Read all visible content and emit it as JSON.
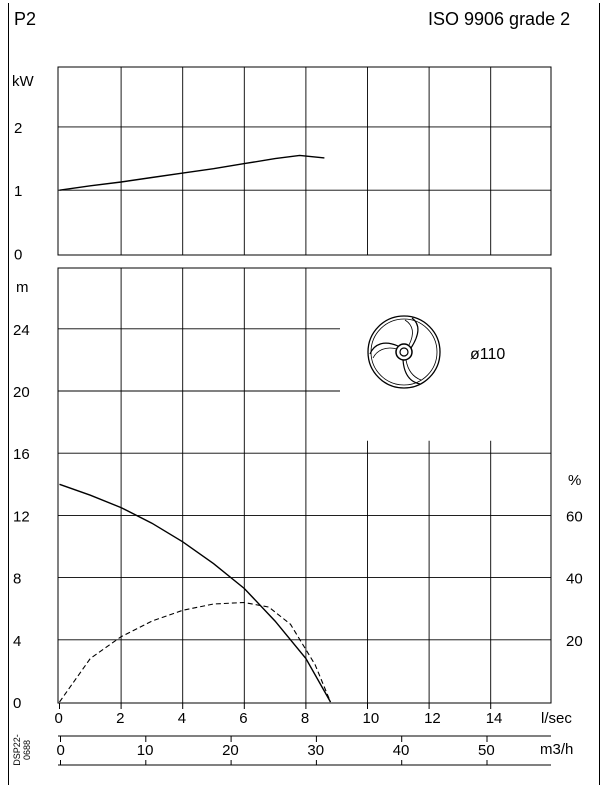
{
  "header": {
    "left_label": "P2",
    "right_label": "ISO 9906 grade 2"
  },
  "document_id": "DSP22-0688",
  "impeller": {
    "icon": "impeller-icon",
    "diameter_label": "ø110"
  },
  "chart_data": [
    {
      "type": "line",
      "panel": "power",
      "ylabel": "kW",
      "y_ticks": [
        0,
        1,
        2
      ],
      "ylim": [
        0,
        3
      ],
      "xlim": [
        0,
        16
      ],
      "grid": true,
      "series": [
        {
          "x": [
            0,
            1,
            2,
            3,
            4,
            5,
            6,
            7,
            7.8,
            8.6
          ],
          "y": [
            1.0,
            1.07,
            1.13,
            1.2,
            1.27,
            1.34,
            1.42,
            1.5,
            1.55,
            1.51
          ]
        }
      ]
    },
    {
      "type": "line",
      "panel": "head_efficiency",
      "ylabel": "m",
      "y_ticks": [
        0,
        4,
        8,
        12,
        16,
        20,
        24
      ],
      "ylim": [
        0,
        28
      ],
      "y2label": "%",
      "y2_ticks": [
        20,
        40,
        60
      ],
      "y2lim": [
        0,
        70
      ],
      "xlabel": "l/sec",
      "x_ticks": [
        0,
        2,
        4,
        6,
        8,
        10,
        12,
        14
      ],
      "xlim": [
        0,
        16
      ],
      "secondary_x_axis": {
        "label": "m3/h",
        "ticks": [
          0,
          10,
          20,
          30,
          40,
          50
        ],
        "lim": [
          0,
          57.6
        ]
      },
      "grid": true,
      "series": [
        {
          "style": "solid",
          "axis": "m",
          "x": [
            0,
            1,
            2,
            3,
            4,
            5,
            6,
            7,
            8,
            8.8
          ],
          "y": [
            14.0,
            13.3,
            12.5,
            11.5,
            10.3,
            8.9,
            7.3,
            5.2,
            2.8,
            0
          ]
        },
        {
          "style": "dashed",
          "axis": "%",
          "x": [
            0,
            1,
            2,
            3,
            4,
            5,
            6,
            6.8,
            7.5,
            8.3,
            8.8
          ],
          "y": [
            0,
            14,
            21,
            26,
            29.5,
            31.5,
            32,
            30.5,
            25,
            12,
            0
          ]
        }
      ]
    }
  ]
}
